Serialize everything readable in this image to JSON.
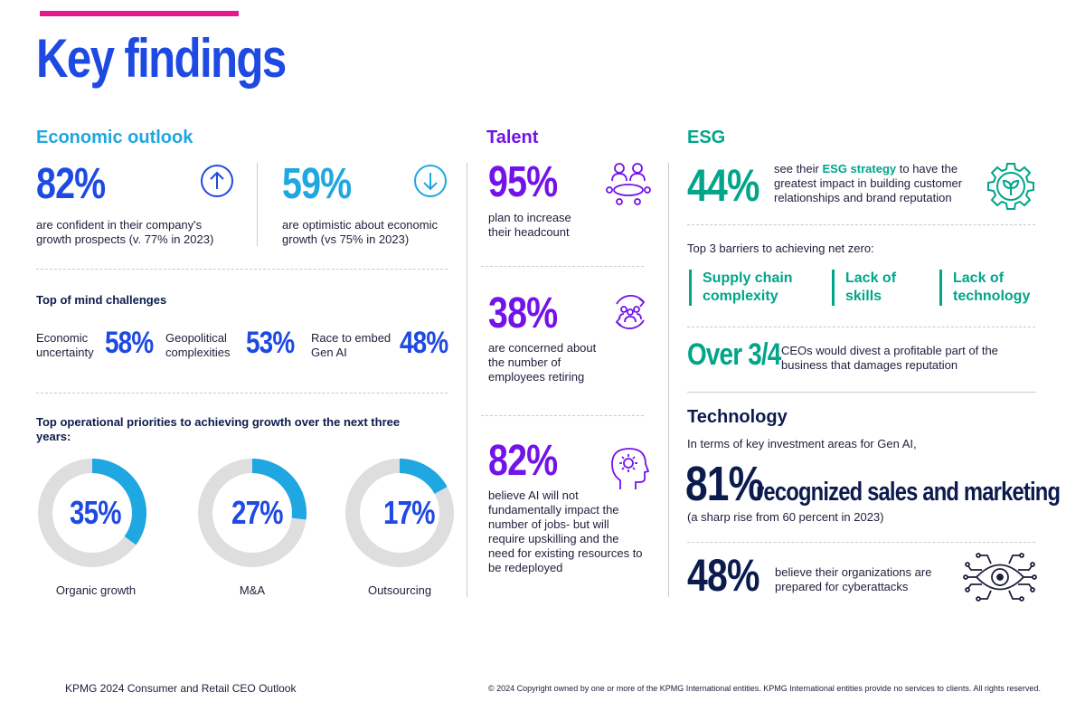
{
  "title": "Key findings",
  "economic": {
    "heading": "Economic outlook",
    "stat1_value": "82%",
    "stat1_text": "are confident in their company's growth prospects  (v. 77% in 2023)",
    "stat2_value": "59%",
    "stat2_text": "are optimistic about economic growth (vs 75% in 2023)",
    "challenges_heading": "Top of mind challenges",
    "challenges": [
      {
        "label": "Economic uncertainty",
        "value": "58%"
      },
      {
        "label": "Geopolitical complexities",
        "value": "53%"
      },
      {
        "label": "Race to embed Gen AI",
        "value": "48%"
      }
    ],
    "priorities_heading": "Top operational priorities to achieving growth over the next three years:",
    "priorities": [
      {
        "label": "Organic growth",
        "value": "35%",
        "fraction": 0.35
      },
      {
        "label": "M&A",
        "value": "27%",
        "fraction": 0.27
      },
      {
        "label": "Outsourcing",
        "value": "17%",
        "fraction": 0.17
      }
    ]
  },
  "talent": {
    "heading": "Talent",
    "stats": [
      {
        "value": "95%",
        "text": "plan to increase their headcount"
      },
      {
        "value": "38%",
        "text": "are concerned about the number of employees retiring"
      },
      {
        "value": "82%",
        "text": "believe AI will not fundamentally impact the number of jobs- but will require upskilling and the need for existing resources to be redeployed"
      }
    ]
  },
  "esg": {
    "heading": "ESG",
    "stat_value": "44%",
    "stat_text_pre": "see their ",
    "stat_text_bold": "ESG strategy",
    "stat_text_post": " to have the greatest impact in building customer relationships and brand reputation",
    "barriers_heading": "Top 3 barriers to achieving net zero:",
    "barriers": [
      "Supply chain complexity",
      "Lack of skills",
      "Lack of technology"
    ],
    "divest_value": "Over 3/4",
    "divest_text": "CEOs would divest a profitable part of the business that damages reputation"
  },
  "technology": {
    "heading": "Technology",
    "intro": "In terms of key investment areas for Gen AI,",
    "headline_value": "81%",
    "headline_text": "recognized sales and marketing",
    "headline_note": "(a sharp rise from 60 percent in 2023)",
    "cyber_value": "48%",
    "cyber_text": "believe their organizations are prepared for cyberattacks"
  },
  "footer": {
    "left": "KPMG 2024 Consumer and Retail CEO Outlook",
    "right": "© 2024 Copyright owned by one or more of the KPMG International entities. KPMG International entities provide no services to clients. All rights reserved."
  },
  "colors": {
    "blue": "#1e49e2",
    "light_blue": "#1ea7e1",
    "purple": "#7213ea",
    "teal": "#00a58a",
    "navy": "#0c1b4d",
    "pink": "#e6198c",
    "donut_track": "#dedede"
  },
  "icons": [
    "arrow-up-circle-icon",
    "arrow-down-circle-icon",
    "meeting-people-icon",
    "people-cycle-icon",
    "head-gear-icon",
    "gear-leaf-icon",
    "circuit-eye-icon"
  ]
}
